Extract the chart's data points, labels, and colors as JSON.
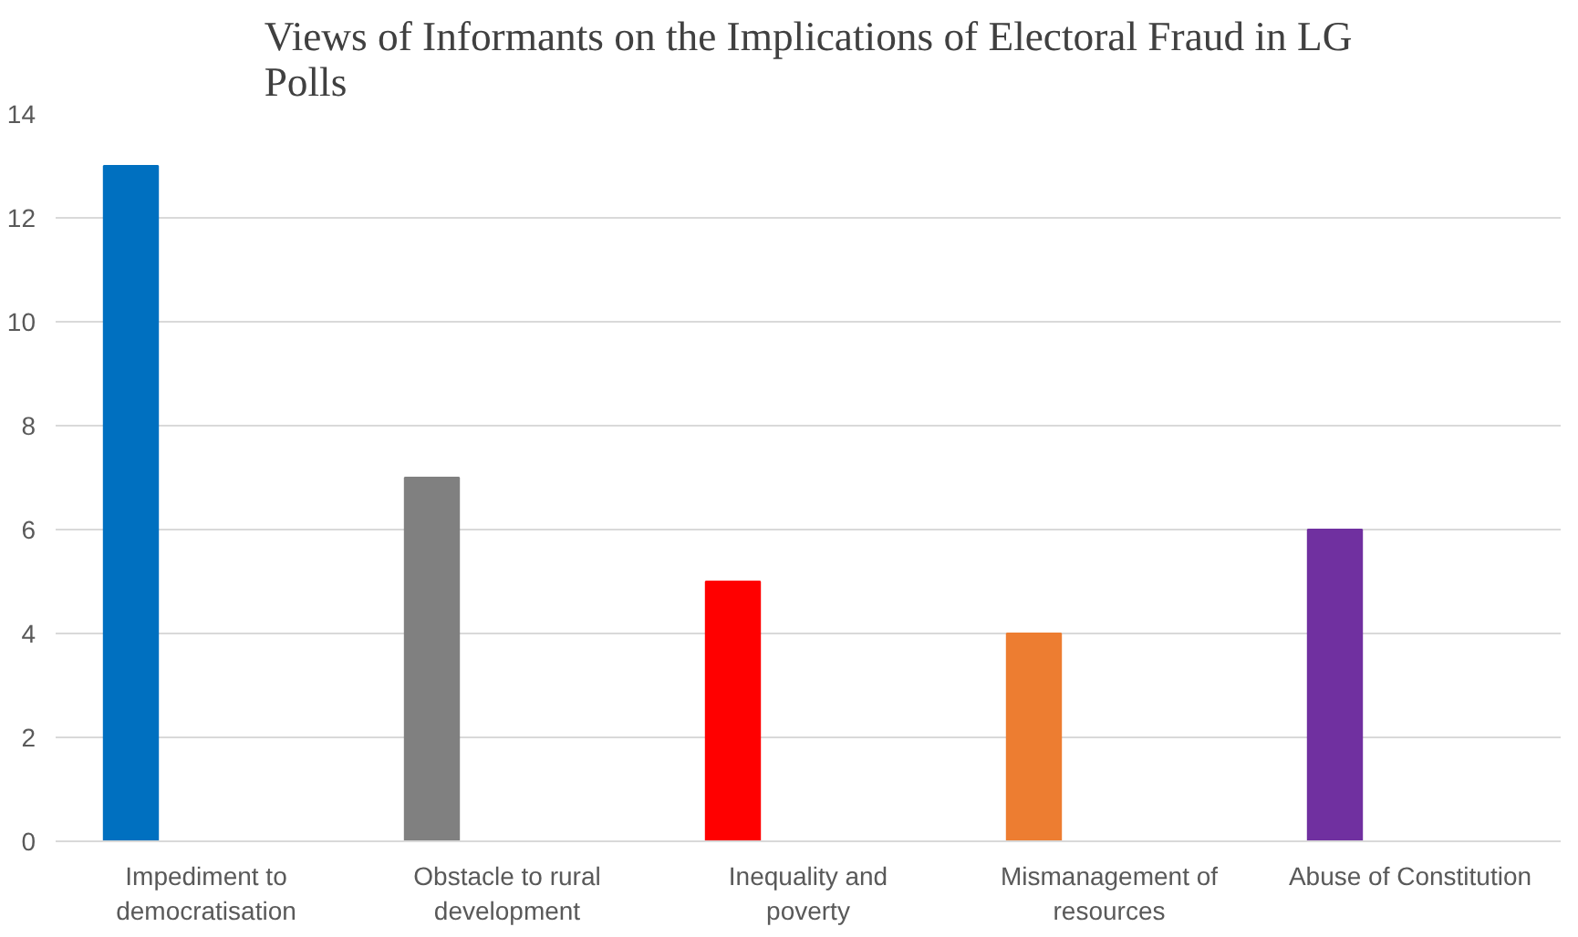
{
  "chart_data": {
    "type": "bar",
    "title": "Views of Informants on the Implications of Electoral Fraud in LG Polls",
    "categories": [
      "Impediment to democratisation",
      "Obstacle to rural development",
      "Inequality and poverty",
      "Mismanagement of resources",
      "Abuse of Constitution"
    ],
    "values": [
      13,
      7,
      5,
      4,
      6
    ],
    "colors": [
      "#0070c0",
      "#808080",
      "#ff0000",
      "#ed7d31",
      "#7030a0"
    ],
    "ylim": [
      0,
      14
    ],
    "yticks": [
      0,
      2,
      4,
      6,
      8,
      10,
      12,
      14
    ],
    "grid": "y"
  }
}
